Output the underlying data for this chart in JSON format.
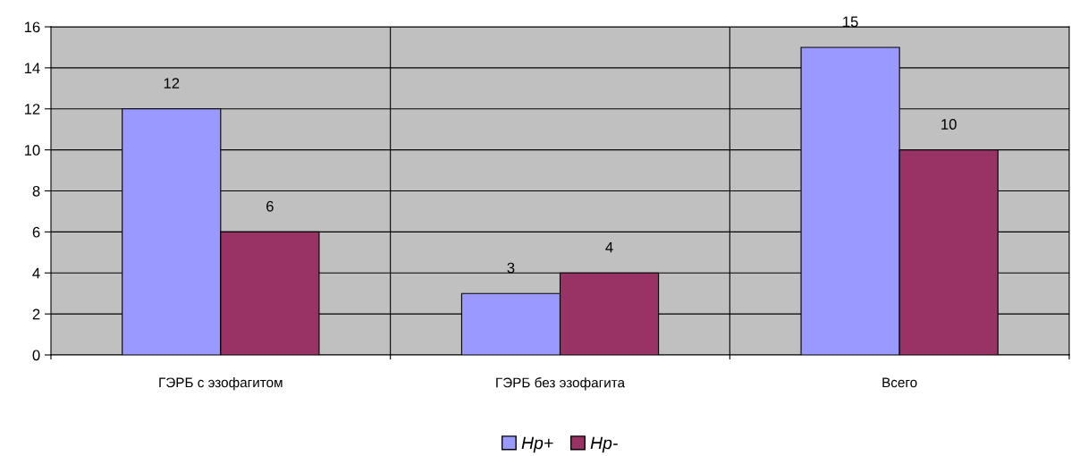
{
  "chart_data": {
    "type": "bar",
    "categories": [
      "ГЭРБ с эзофагитом",
      "ГЭРБ без эзофагита",
      "Всего"
    ],
    "series": [
      {
        "name": "Hp+",
        "color": "#9999ff",
        "values": [
          12,
          3,
          15
        ]
      },
      {
        "name": "Hp-",
        "color": "#993366",
        "values": [
          6,
          4,
          10
        ]
      }
    ],
    "ylim": [
      0,
      16
    ],
    "yticks": [
      0,
      2,
      4,
      6,
      8,
      10,
      12,
      14,
      16
    ],
    "grid": true,
    "legend": "bottom",
    "data_labels": true
  }
}
